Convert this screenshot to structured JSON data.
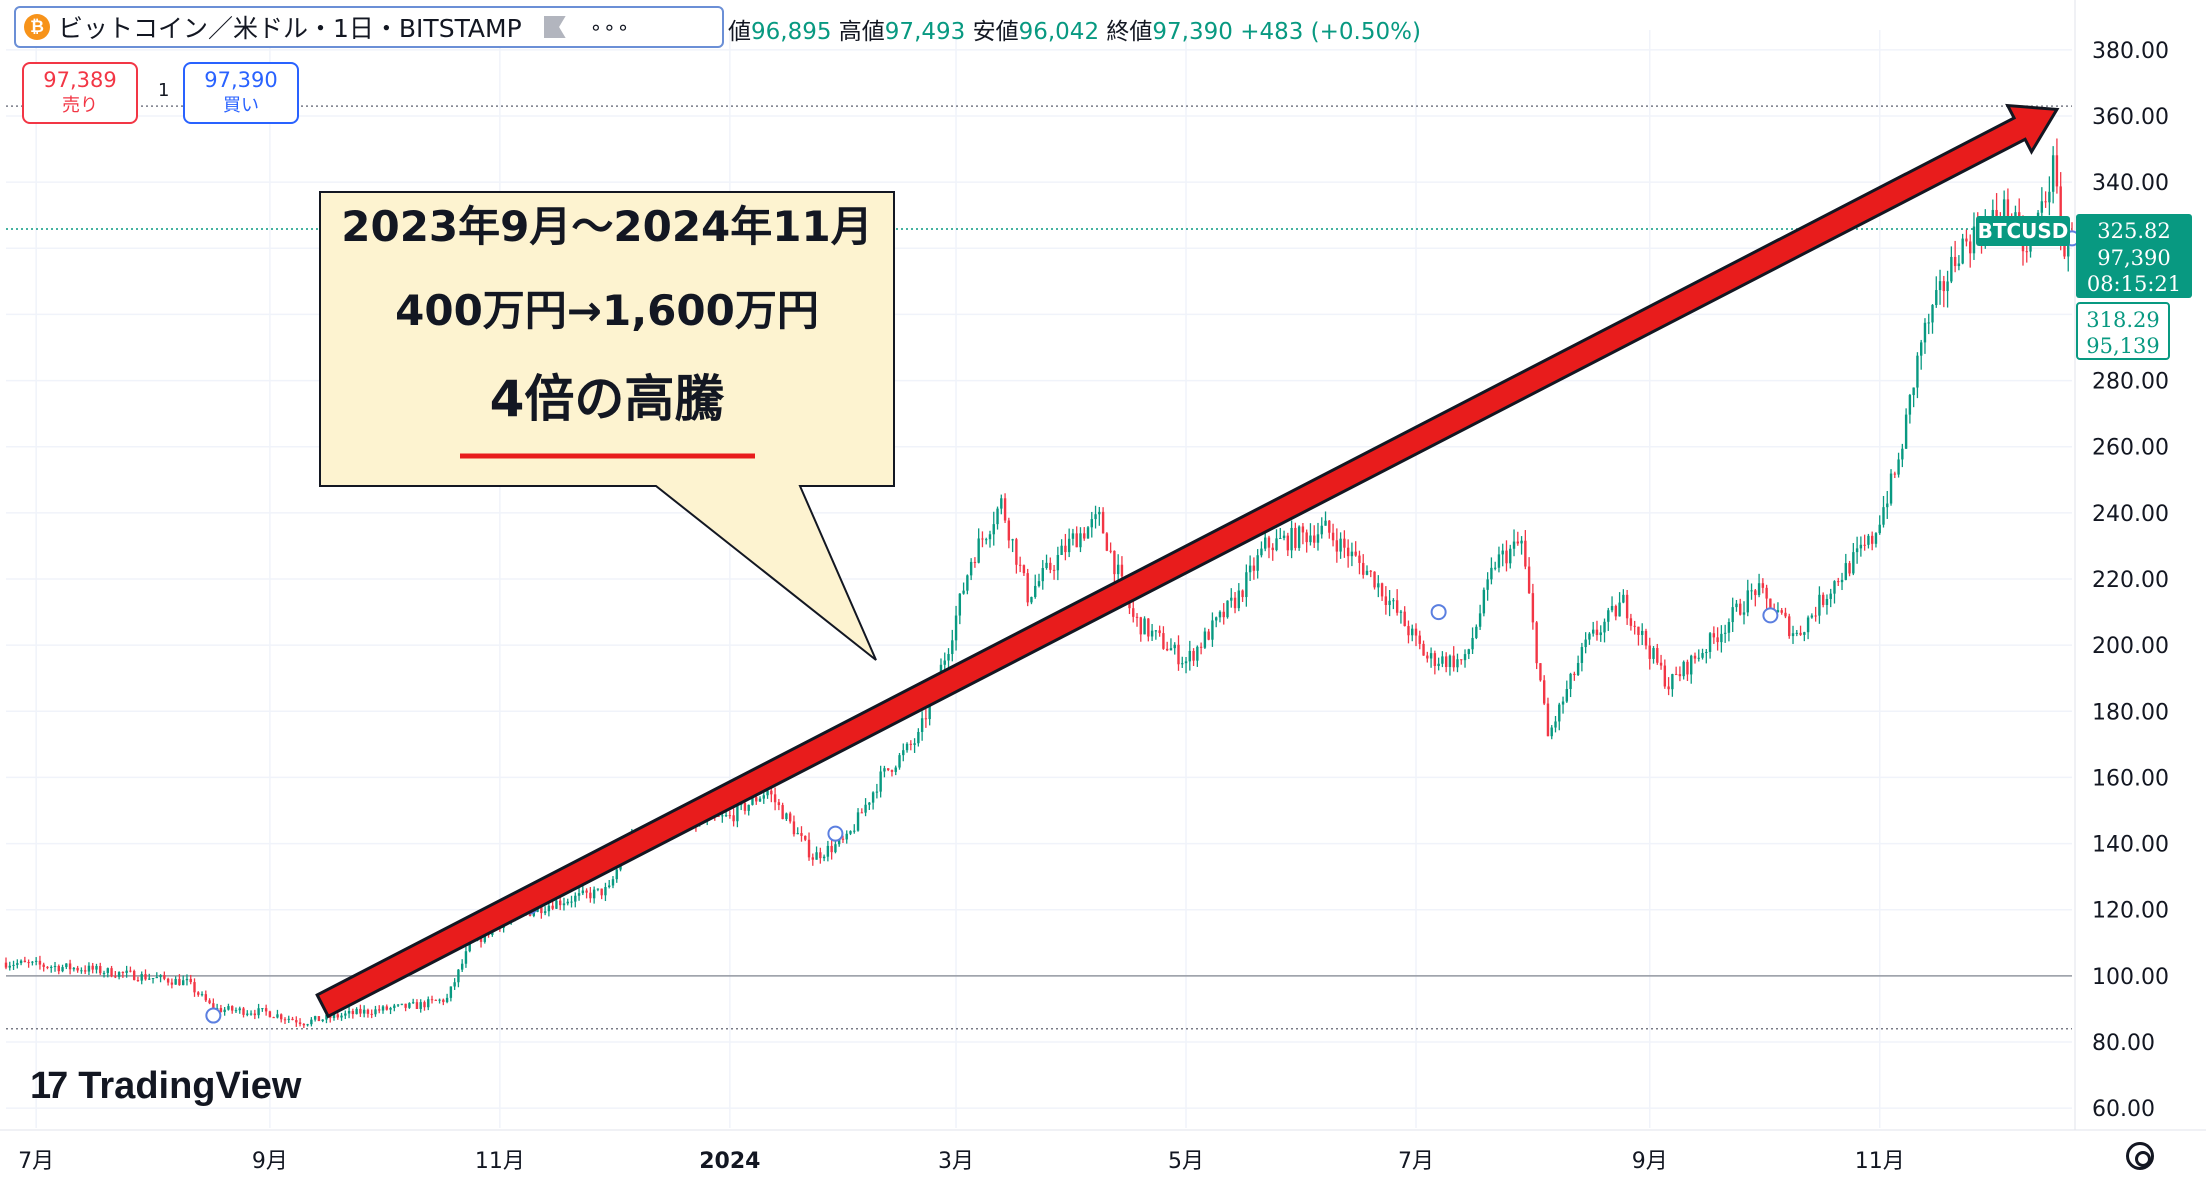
{
  "header": {
    "coin_symbol": "₿",
    "title": "ビットコイン／米ドル・1日・BITSTAMP",
    "more": "∘∘∘"
  },
  "ohlc": {
    "open_label": "値",
    "open": "96,895",
    "high_label": "高値",
    "high": "97,493",
    "low_label": "安値",
    "low": "96,042",
    "close_label": "終値",
    "close": "97,390",
    "change": "+483 (+0.50%)"
  },
  "trade": {
    "sell_price": "97,389",
    "sell_label": "売り",
    "spread": "1",
    "buy_price": "97,390",
    "buy_label": "買い"
  },
  "callout": {
    "line1": "2023年9月～2024年11月",
    "line2": "400万円→1,600万円",
    "line3": "4倍の高騰"
  },
  "price_tags": {
    "symbol": "BTCUSD",
    "current_value": "325.82",
    "current_price": "97,390",
    "countdown": "08:15:21",
    "prev_value": "318.29",
    "prev_price": "95,139"
  },
  "logo": {
    "mark": "17",
    "text": "TradingView"
  },
  "colors": {
    "up": "#089981",
    "down": "#f23645",
    "arrow": "#e81c1c",
    "callout_bg": "#fdf3d0",
    "tag_green": "#089981"
  },
  "chart_data": {
    "type": "candlestick",
    "y_ticks": [
      "380.00",
      "360.00",
      "340.00",
      "320.00",
      "300.00",
      "280.00",
      "260.00",
      "240.00",
      "220.00",
      "200.00",
      "180.00",
      "160.00",
      "140.00",
      "120.00",
      "100.00",
      "80.00",
      "60.00"
    ],
    "ylim": [
      54,
      386
    ],
    "x_ticks": [
      "7月",
      "9月",
      "11月",
      "2024",
      "3月",
      "5月",
      "7月",
      "9月",
      "11月"
    ],
    "x_tick_dates": [
      "2023-07-01",
      "2023-09-01",
      "2023-11-01",
      "2024-01-01",
      "2024-03-01",
      "2024-05-01",
      "2024-07-01",
      "2024-09-01",
      "2024-11-01"
    ],
    "x_range": [
      "2023-06-23",
      "2024-12-22"
    ],
    "baseline": 100,
    "low_line": 84,
    "high_line": 363,
    "current_line": 325.82,
    "grid": true,
    "close_path": [
      [
        "2023-06-23",
        104
      ],
      [
        "2023-07-15",
        102
      ],
      [
        "2023-08-10",
        98
      ],
      [
        "2023-08-17",
        90
      ],
      [
        "2023-08-31",
        89
      ],
      [
        "2023-09-10",
        86
      ],
      [
        "2023-09-25",
        89
      ],
      [
        "2023-10-10",
        91
      ],
      [
        "2023-10-18",
        93
      ],
      [
        "2023-10-24",
        109
      ],
      [
        "2023-11-01",
        116
      ],
      [
        "2023-11-15",
        122
      ],
      [
        "2023-11-30",
        126
      ],
      [
        "2023-12-05",
        141
      ],
      [
        "2023-12-20",
        146
      ],
      [
        "2024-01-01",
        148
      ],
      [
        "2024-01-11",
        156
      ],
      [
        "2024-01-23",
        136
      ],
      [
        "2024-02-01",
        141
      ],
      [
        "2024-02-10",
        160
      ],
      [
        "2024-02-20",
        172
      ],
      [
        "2024-02-28",
        200
      ],
      [
        "2024-03-05",
        226
      ],
      [
        "2024-03-13",
        243
      ],
      [
        "2024-03-20",
        215
      ],
      [
        "2024-04-01",
        232
      ],
      [
        "2024-04-08",
        238
      ],
      [
        "2024-04-17",
        208
      ],
      [
        "2024-05-01",
        195
      ],
      [
        "2024-05-15",
        215
      ],
      [
        "2024-05-22",
        230
      ],
      [
        "2024-06-07",
        235
      ],
      [
        "2024-06-20",
        220
      ],
      [
        "2024-07-04",
        196
      ],
      [
        "2024-07-14",
        195
      ],
      [
        "2024-07-22",
        225
      ],
      [
        "2024-07-29",
        231
      ],
      [
        "2024-08-05",
        172
      ],
      [
        "2024-08-15",
        200
      ],
      [
        "2024-08-25",
        213
      ],
      [
        "2024-09-06",
        188
      ],
      [
        "2024-09-18",
        202
      ],
      [
        "2024-09-29",
        217
      ],
      [
        "2024-10-10",
        203
      ],
      [
        "2024-10-20",
        219
      ],
      [
        "2024-10-30",
        232
      ],
      [
        "2024-11-06",
        255
      ],
      [
        "2024-11-12",
        292
      ],
      [
        "2024-11-22",
        320
      ],
      [
        "2024-12-05",
        332
      ],
      [
        "2024-12-10",
        318
      ],
      [
        "2024-12-17",
        344
      ],
      [
        "2024-12-20",
        318
      ],
      [
        "2024-12-22",
        325.8
      ]
    ],
    "markers": [
      [
        "2023-08-17",
        88
      ],
      [
        "2023-11-09",
        121
      ],
      [
        "2024-01-29",
        143
      ],
      [
        "2024-07-07",
        210
      ],
      [
        "2024-10-03",
        209
      ],
      [
        "2024-12-22",
        323
      ]
    ],
    "annotation_arrow": {
      "from": [
        "2023-09-15",
        91
      ],
      "to": [
        "2024-12-18",
        362
      ]
    }
  }
}
